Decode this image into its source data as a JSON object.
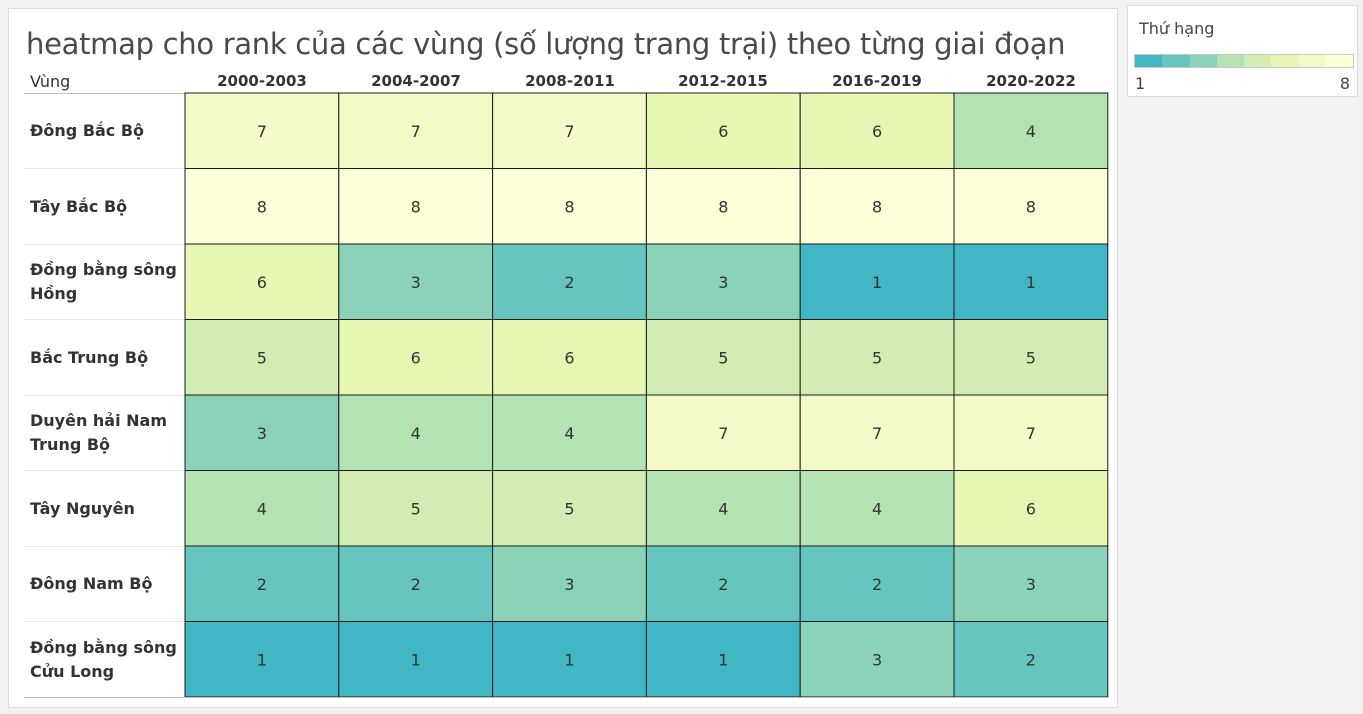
{
  "chart_data": {
    "type": "heatmap",
    "title": "heatmap cho rank của các vùng (số lượng trang trại) theo từng giai đoạn",
    "row_header": "Vùng",
    "columns": [
      "2000-2003",
      "2004-2007",
      "2008-2011",
      "2012-2015",
      "2016-2019",
      "2020-2022"
    ],
    "rows": [
      "Đông Bắc Bộ",
      "Tây Bắc Bộ",
      "Đồng bằng sông Hồng",
      "Bắc Trung Bộ",
      "Duyên hải Nam Trung Bộ",
      "Tây Nguyên",
      "Đông Nam Bộ",
      "Đồng bằng sông Cửu Long"
    ],
    "values": [
      [
        7,
        7,
        7,
        6,
        6,
        4
      ],
      [
        8,
        8,
        8,
        8,
        8,
        8
      ],
      [
        6,
        3,
        2,
        3,
        1,
        1
      ],
      [
        5,
        6,
        6,
        5,
        5,
        5
      ],
      [
        3,
        4,
        4,
        7,
        7,
        7
      ],
      [
        4,
        5,
        5,
        4,
        4,
        6
      ],
      [
        2,
        2,
        3,
        2,
        2,
        3
      ],
      [
        1,
        1,
        1,
        1,
        3,
        2
      ]
    ],
    "color_scale": {
      "1": "#41b6c4",
      "2": "#67c5bf",
      "3": "#8ad3b9",
      "4": "#b3e2b3",
      "5": "#d1edb3",
      "6": "#e6f6b3",
      "7": "#f3fac7",
      "8": "#feffd9"
    }
  },
  "legend": {
    "title": "Thứ hạng",
    "min_label": "1",
    "max_label": "8"
  }
}
